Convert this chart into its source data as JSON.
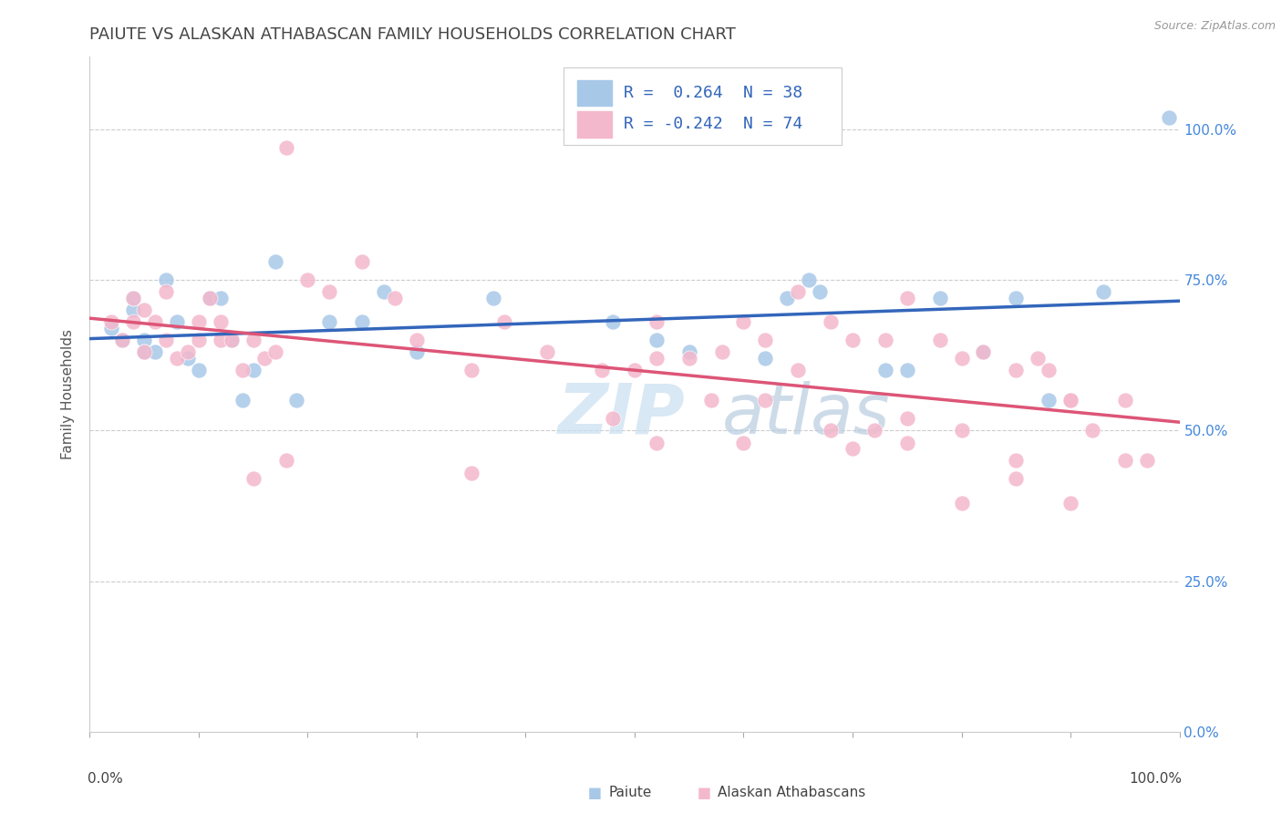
{
  "title": "PAIUTE VS ALASKAN ATHABASCAN FAMILY HOUSEHOLDS CORRELATION CHART",
  "source_text": "Source: ZipAtlas.com",
  "ylabel": "Family Households",
  "xlim": [
    0,
    1
  ],
  "ylim": [
    0.0,
    1.12
  ],
  "ytick_positions": [
    0.0,
    0.25,
    0.5,
    0.75,
    1.0
  ],
  "ytick_labels": [
    "0.0%",
    "25.0%",
    "50.0%",
    "75.0%",
    "100.0%"
  ],
  "background_color": "#ffffff",
  "grid_color": "#cccccc",
  "title_color": "#444444",
  "title_fontsize": 13,
  "watermark_zip": "ZIP",
  "watermark_atlas": "atlas",
  "legend_r_blue": "R =  0.264",
  "legend_n_blue": "N = 38",
  "legend_r_pink": "R = -0.242",
  "legend_n_pink": "N = 74",
  "blue_color": "#a8c8e8",
  "pink_color": "#f4b8cc",
  "blue_edge": "#7aaad0",
  "pink_edge": "#e888aa",
  "line_blue": "#3366bb",
  "line_pink": "#dd5577",
  "paiute_label": "Paiute",
  "athabascan_label": "Alaskan Athabascans",
  "legend_text_color": "#3366bb",
  "paiute_x": [
    0.02,
    0.03,
    0.04,
    0.04,
    0.05,
    0.05,
    0.06,
    0.07,
    0.08,
    0.09,
    0.1,
    0.11,
    0.12,
    0.13,
    0.14,
    0.15,
    0.17,
    0.19,
    0.22,
    0.25,
    0.27,
    0.3,
    0.37,
    0.48,
    0.52,
    0.55,
    0.62,
    0.64,
    0.66,
    0.67,
    0.73,
    0.75,
    0.78,
    0.82,
    0.85,
    0.88,
    0.93,
    0.99
  ],
  "paiute_y": [
    0.67,
    0.65,
    0.7,
    0.72,
    0.65,
    0.63,
    0.63,
    0.75,
    0.68,
    0.62,
    0.6,
    0.72,
    0.72,
    0.65,
    0.55,
    0.6,
    0.78,
    0.55,
    0.68,
    0.68,
    0.73,
    0.63,
    0.72,
    0.68,
    0.65,
    0.63,
    0.62,
    0.72,
    0.75,
    0.73,
    0.6,
    0.6,
    0.72,
    0.63,
    0.72,
    0.55,
    0.73,
    1.02
  ],
  "athabascan_x": [
    0.02,
    0.03,
    0.04,
    0.04,
    0.05,
    0.05,
    0.06,
    0.07,
    0.07,
    0.08,
    0.09,
    0.1,
    0.1,
    0.11,
    0.12,
    0.12,
    0.13,
    0.14,
    0.15,
    0.16,
    0.17,
    0.18,
    0.2,
    0.22,
    0.25,
    0.28,
    0.3,
    0.35,
    0.38,
    0.42,
    0.47,
    0.5,
    0.52,
    0.55,
    0.58,
    0.6,
    0.62,
    0.65,
    0.68,
    0.7,
    0.73,
    0.75,
    0.78,
    0.8,
    0.82,
    0.85,
    0.87,
    0.88,
    0.9,
    0.92,
    0.95,
    0.97,
    0.15,
    0.18,
    0.35,
    0.48,
    0.52,
    0.57,
    0.62,
    0.65,
    0.68,
    0.72,
    0.75,
    0.8,
    0.85,
    0.9,
    0.52,
    0.6,
    0.7,
    0.75,
    0.8,
    0.85,
    0.9,
    0.95
  ],
  "athabascan_y": [
    0.68,
    0.65,
    0.72,
    0.68,
    0.63,
    0.7,
    0.68,
    0.73,
    0.65,
    0.62,
    0.63,
    0.68,
    0.65,
    0.72,
    0.65,
    0.68,
    0.65,
    0.6,
    0.65,
    0.62,
    0.63,
    0.97,
    0.75,
    0.73,
    0.78,
    0.72,
    0.65,
    0.6,
    0.68,
    0.63,
    0.6,
    0.6,
    0.68,
    0.62,
    0.63,
    0.68,
    0.65,
    0.73,
    0.68,
    0.65,
    0.65,
    0.72,
    0.65,
    0.62,
    0.63,
    0.6,
    0.62,
    0.6,
    0.55,
    0.5,
    0.55,
    0.45,
    0.42,
    0.45,
    0.43,
    0.52,
    0.62,
    0.55,
    0.55,
    0.6,
    0.5,
    0.5,
    0.52,
    0.5,
    0.45,
    0.55,
    0.48,
    0.48,
    0.47,
    0.48,
    0.38,
    0.42,
    0.38,
    0.45
  ]
}
